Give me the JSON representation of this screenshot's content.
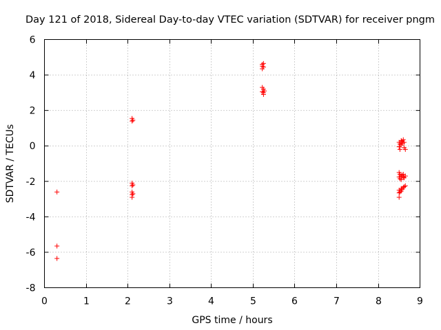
{
  "chart_data": {
    "type": "scatter",
    "title": "Day 121 of 2018, Sidereal Day-to-day VTEC variation (SDTVAR) for receiver pngm",
    "xlabel": "GPS time / hours",
    "ylabel": "SDTVAR / TECUs",
    "xlim": [
      0,
      9
    ],
    "ylim": [
      -8,
      6
    ],
    "xticks": [
      0,
      1,
      2,
      3,
      4,
      5,
      6,
      7,
      8,
      9
    ],
    "yticks": [
      -8,
      -6,
      -4,
      -2,
      0,
      2,
      4,
      6
    ],
    "grid": true,
    "marker": "+",
    "color": "#ff0000",
    "series": [
      {
        "name": "SDTVAR",
        "points": [
          [
            0.3,
            -2.6
          ],
          [
            0.3,
            -5.65
          ],
          [
            0.3,
            -6.35
          ],
          [
            2.1,
            1.55
          ],
          [
            2.12,
            1.45
          ],
          [
            2.1,
            1.4
          ],
          [
            2.1,
            -2.1
          ],
          [
            2.12,
            -2.2
          ],
          [
            2.1,
            -2.25
          ],
          [
            2.1,
            -2.6
          ],
          [
            2.12,
            -2.7
          ],
          [
            2.1,
            -2.75
          ],
          [
            2.1,
            -2.9
          ],
          [
            5.22,
            4.6
          ],
          [
            5.25,
            4.65
          ],
          [
            5.22,
            4.5
          ],
          [
            5.25,
            4.45
          ],
          [
            5.22,
            4.35
          ],
          [
            5.22,
            3.3
          ],
          [
            5.25,
            3.2
          ],
          [
            5.22,
            3.05
          ],
          [
            5.25,
            3.0
          ],
          [
            5.27,
            3.1
          ],
          [
            5.25,
            2.9
          ],
          [
            8.5,
            0.2
          ],
          [
            8.52,
            0.1
          ],
          [
            8.55,
            0.3
          ],
          [
            8.57,
            0.25
          ],
          [
            8.6,
            0.35
          ],
          [
            8.62,
            0.2
          ],
          [
            8.5,
            -0.05
          ],
          [
            8.52,
            -0.2
          ],
          [
            8.55,
            0.05
          ],
          [
            8.58,
            0.15
          ],
          [
            8.62,
            -0.1
          ],
          [
            8.65,
            -0.2
          ],
          [
            8.5,
            -1.5
          ],
          [
            8.52,
            -1.6
          ],
          [
            8.55,
            -1.7
          ],
          [
            8.57,
            -1.65
          ],
          [
            8.6,
            -1.75
          ],
          [
            8.62,
            -1.8
          ],
          [
            8.52,
            -1.85
          ],
          [
            8.55,
            -1.9
          ],
          [
            8.6,
            -1.6
          ],
          [
            8.65,
            -1.7
          ],
          [
            8.5,
            -1.75
          ],
          [
            8.5,
            -2.5
          ],
          [
            8.52,
            -2.6
          ],
          [
            8.55,
            -2.4
          ],
          [
            8.57,
            -2.45
          ],
          [
            8.6,
            -2.35
          ],
          [
            8.62,
            -2.3
          ],
          [
            8.65,
            -2.25
          ],
          [
            8.5,
            -2.65
          ],
          [
            8.55,
            -2.55
          ],
          [
            8.5,
            -2.9
          ]
        ]
      }
    ]
  }
}
